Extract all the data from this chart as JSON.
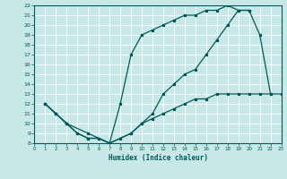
{
  "bg_color": "#c8e8e8",
  "grid_color": "#ffffff",
  "line_color": "#005858",
  "xlabel": "Humidex (Indice chaleur)",
  "xlim": [
    0,
    23
  ],
  "ylim": [
    8,
    22
  ],
  "xtick_vals": [
    0,
    1,
    2,
    3,
    4,
    5,
    6,
    7,
    8,
    9,
    10,
    11,
    12,
    13,
    14,
    15,
    16,
    17,
    18,
    19,
    20,
    21,
    22,
    23
  ],
  "ytick_vals": [
    8,
    9,
    10,
    11,
    12,
    13,
    14,
    15,
    16,
    17,
    18,
    19,
    20,
    21,
    22
  ],
  "curve1_x": [
    1,
    2,
    3,
    4,
    5,
    6,
    7,
    8,
    9,
    10,
    11,
    12,
    13,
    14,
    15,
    16,
    17,
    18,
    19,
    20
  ],
  "curve1_y": [
    12,
    11,
    10,
    9,
    8.5,
    8.5,
    8,
    12,
    17,
    19,
    19.5,
    20,
    20.5,
    21,
    21,
    21.5,
    21.5,
    22,
    21.5,
    21.5
  ],
  "curve2_x": [
    1,
    2,
    3,
    5,
    7,
    9,
    10,
    11,
    12,
    13,
    14,
    15,
    16,
    17,
    18,
    19,
    20,
    21,
    22
  ],
  "curve2_y": [
    12,
    11,
    10,
    9,
    8,
    9,
    10,
    11,
    13,
    14,
    15,
    15.5,
    17,
    18.5,
    20,
    21.5,
    21.5,
    19,
    13
  ],
  "curve3_x": [
    1,
    2,
    3,
    4,
    5,
    6,
    7,
    8,
    9,
    10,
    11,
    12,
    13,
    14,
    15,
    16,
    17,
    18,
    19,
    20,
    21,
    22,
    23
  ],
  "curve3_y": [
    12,
    11,
    10,
    9,
    8.5,
    8.5,
    8,
    8.5,
    9,
    10,
    10.5,
    11,
    11.5,
    12,
    12.5,
    12.5,
    13,
    13,
    13,
    13,
    13,
    13,
    13
  ]
}
